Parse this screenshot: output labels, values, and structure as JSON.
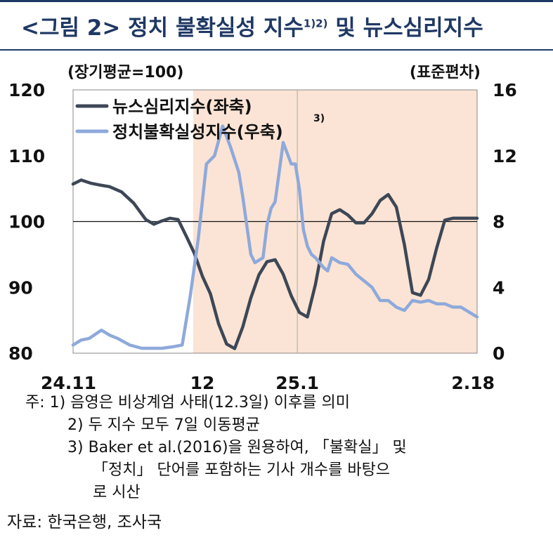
{
  "title": {
    "prefix": "<그림 2> 정치 불확실성 지수",
    "sup": "1)2)",
    "suffix": " 및 뉴스심리지수"
  },
  "chart_data": {
    "type": "line",
    "left_unit": "(장기평균=100)",
    "right_unit": "(표준편차)",
    "y_left_lim": [
      80,
      120
    ],
    "y_left_ticks": [
      "120",
      "110",
      "100",
      "90",
      "80"
    ],
    "y_right_lim": [
      0,
      16
    ],
    "y_right_ticks": [
      "16",
      "12",
      "8",
      "4",
      "0"
    ],
    "x_ticks": [
      "24.11",
      "12",
      "25.1",
      "2.18"
    ],
    "shaded_region": [
      0.297,
      1.0
    ],
    "reference_line_left": 100,
    "series": [
      {
        "name": "뉴스심리지수(좌축)",
        "axis": "left",
        "color": "#3d4756",
        "x": [
          0,
          0.02,
          0.045,
          0.07,
          0.09,
          0.12,
          0.15,
          0.18,
          0.2,
          0.22,
          0.24,
          0.26,
          0.28,
          0.3,
          0.32,
          0.34,
          0.36,
          0.38,
          0.4,
          0.42,
          0.44,
          0.46,
          0.48,
          0.5,
          0.52,
          0.54,
          0.56,
          0.58,
          0.6,
          0.62,
          0.64,
          0.66,
          0.68,
          0.7,
          0.72,
          0.74,
          0.76,
          0.78,
          0.8,
          0.82,
          0.84,
          0.86,
          0.88,
          0.9,
          0.92,
          0.94,
          0.96,
          0.98,
          1.0
        ],
        "values": [
          105.7,
          106.3,
          105.8,
          105.5,
          105.3,
          104.5,
          102.8,
          100.3,
          99.6,
          100.1,
          100.5,
          100.3,
          97.8,
          95.2,
          91.7,
          89.0,
          84.5,
          81.4,
          80.7,
          84.0,
          88.4,
          91.9,
          93.9,
          94.2,
          92.0,
          88.7,
          86.2,
          85.5,
          90.5,
          97.0,
          101.2,
          101.8,
          101.0,
          99.8,
          99.8,
          101.2,
          103.2,
          104.1,
          102.2,
          96.5,
          89.2,
          88.8,
          91.2,
          96.0,
          100.2,
          100.5,
          100.5,
          100.5,
          100.5
        ]
      },
      {
        "name": "정치불확실성지수(우축)",
        "axis": "right",
        "color": "#8ea9db",
        "x": [
          0,
          0.02,
          0.04,
          0.07,
          0.09,
          0.11,
          0.14,
          0.17,
          0.2,
          0.22,
          0.25,
          0.27,
          0.29,
          0.31,
          0.33,
          0.35,
          0.37,
          0.39,
          0.41,
          0.42,
          0.44,
          0.45,
          0.47,
          0.48,
          0.49,
          0.5,
          0.51,
          0.52,
          0.54,
          0.55,
          0.56,
          0.57,
          0.58,
          0.59,
          0.6,
          0.62,
          0.63,
          0.64,
          0.66,
          0.68,
          0.7,
          0.72,
          0.74,
          0.76,
          0.78,
          0.8,
          0.82,
          0.84,
          0.86,
          0.88,
          0.9,
          0.92,
          0.94,
          0.96,
          0.98,
          1.0
        ],
        "values": [
          0.5,
          0.8,
          0.9,
          1.4,
          1.1,
          0.9,
          0.5,
          0.3,
          0.3,
          0.3,
          0.4,
          0.5,
          3.5,
          7.0,
          11.5,
          12.0,
          13.8,
          12.5,
          11.0,
          9.5,
          6.0,
          5.5,
          5.8,
          7.8,
          8.8,
          9.2,
          11.0,
          12.8,
          11.5,
          11.5,
          10.0,
          7.5,
          6.5,
          6.0,
          5.8,
          5.2,
          5.0,
          5.8,
          5.5,
          5.4,
          4.8,
          4.4,
          4.0,
          3.2,
          3.2,
          2.8,
          2.6,
          3.2,
          3.1,
          3.2,
          3.0,
          3.0,
          2.8,
          2.8,
          2.5,
          2.2
        ]
      }
    ]
  },
  "notes": [
    "주: 1) 음영은 비상계엄 사태(12.3일) 이후를 의미",
    "2) 두 지수 모두 7일 이동평균",
    "3) Baker et al.(2016)을 원용하여, 「불확실」 및",
    "「정치」 단어를 포함하는 기사 개수를 바탕으",
    "로 시산"
  ],
  "source": "자료: 한국은행, 조사국",
  "legend_sup": "3)"
}
